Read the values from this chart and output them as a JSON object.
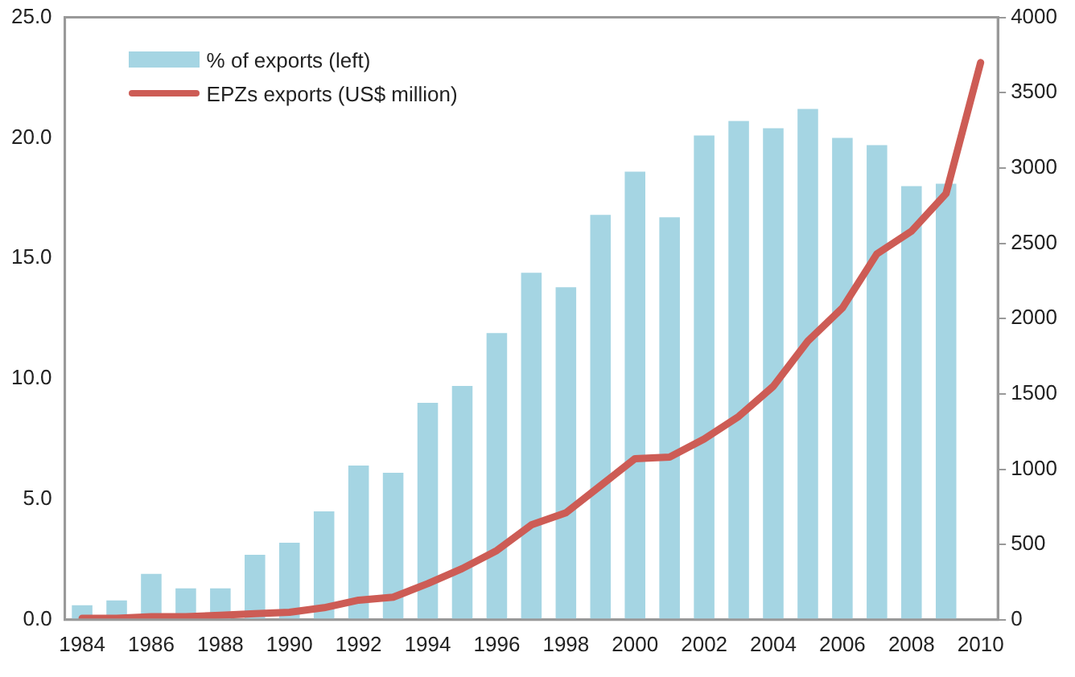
{
  "chart_data": {
    "type": "bar",
    "categories": [
      "1984",
      null,
      "1986",
      null,
      "1988",
      null,
      "1990",
      null,
      "1992",
      null,
      "1994",
      null,
      "1996",
      null,
      "1998",
      null,
      "2000",
      null,
      "2002",
      null,
      "2004",
      null,
      "2006",
      null,
      "2008",
      null,
      "2010"
    ],
    "series": [
      {
        "name": "% of exports (left)",
        "color": "#a5d5e3",
        "values": [
          0.6,
          0.8,
          1.9,
          1.3,
          1.3,
          2.7,
          3.2,
          4.5,
          6.4,
          6.1,
          9.0,
          9.7,
          11.9,
          14.4,
          13.8,
          16.8,
          18.6,
          16.7,
          20.1,
          20.7,
          20.4,
          21.2,
          20.0,
          19.7,
          18.0,
          18.1,
          null
        ]
      },
      {
        "name": "EPZs exports (US$ million)",
        "type": "line",
        "axis": "y2",
        "color": "#cd5c55",
        "values": [
          10,
          10,
          20,
          20,
          30,
          40,
          50,
          80,
          130,
          150,
          240,
          340,
          460,
          630,
          710,
          890,
          1070,
          1080,
          1200,
          1350,
          1550,
          1850,
          2070,
          2430,
          2580,
          2830,
          3700
        ]
      }
    ],
    "ylim": [
      0,
      25
    ],
    "yticks": [
      {
        "value": 0,
        "label": "0.0"
      },
      {
        "value": 5,
        "label": "5.0"
      },
      {
        "value": 10,
        "label": "10.0"
      },
      {
        "value": 15,
        "label": "15.0"
      },
      {
        "value": 20,
        "label": "20.0"
      },
      {
        "value": 25,
        "label": "25.0"
      }
    ],
    "y2lim": [
      0,
      4000
    ],
    "y2ticks": [
      0,
      500,
      1000,
      1500,
      2000,
      2500,
      3000,
      3500,
      4000
    ],
    "grid": false,
    "legend": "top left",
    "marker": "none",
    "line_style": "solid"
  }
}
